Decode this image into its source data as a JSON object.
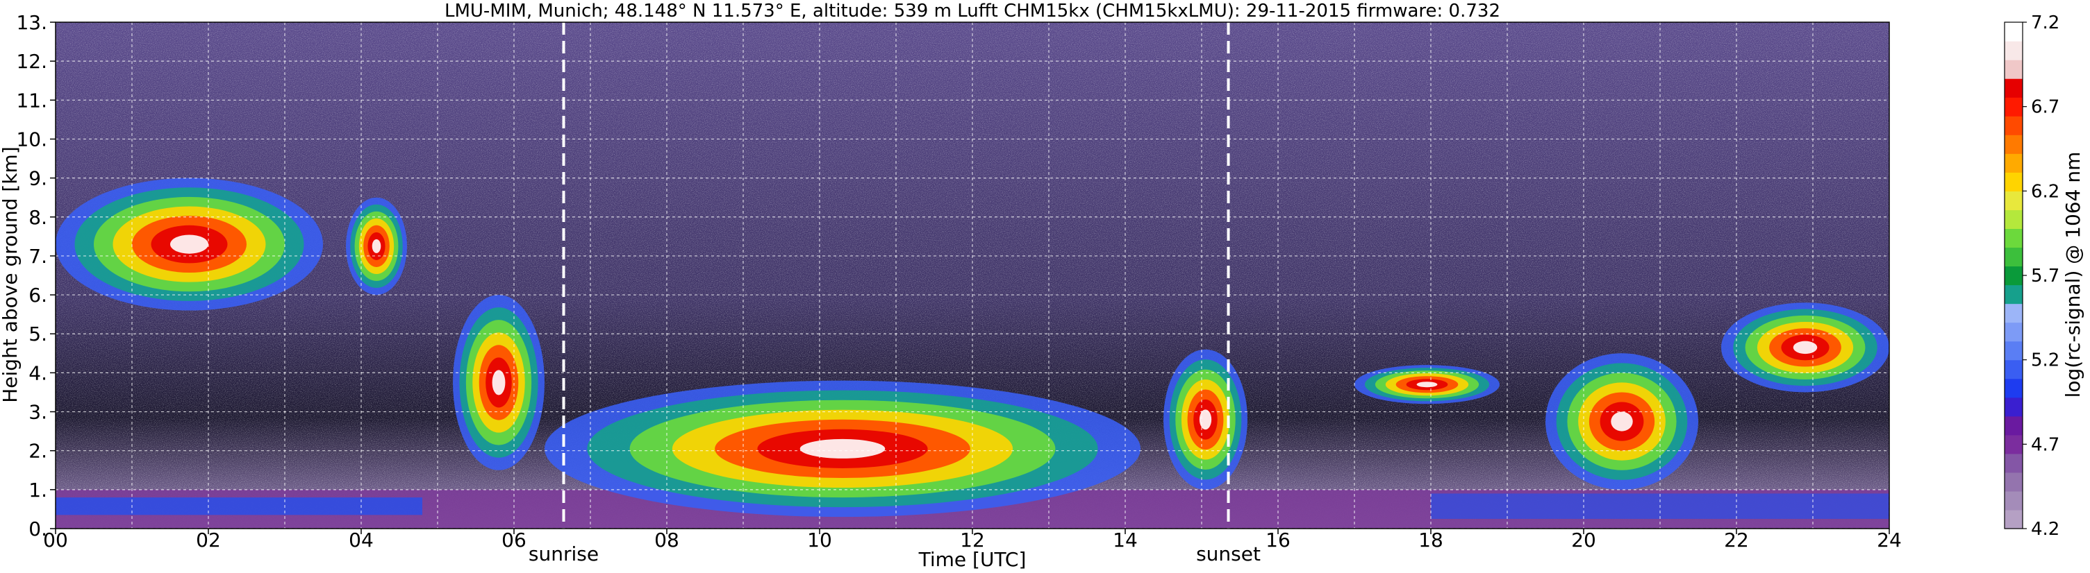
{
  "chart_data": {
    "type": "heatmap",
    "title": "LMU-MIM, Munich; 48.148° N 11.573° E, altitude: 539 m    Lufft CHM15kx (CHM15kxLMU): 29-11-2015    firmware: 0.732",
    "xlabel": "Time [UTC]",
    "ylabel": "Height above ground [km]",
    "xlim": [
      0,
      24
    ],
    "ylim": [
      0,
      13
    ],
    "x_ticks": [
      "00",
      "02",
      "04",
      "06",
      "08",
      "10",
      "12",
      "14",
      "16",
      "18",
      "20",
      "22",
      "24"
    ],
    "y_ticks": [
      "0.",
      "1.",
      "2.",
      "3.",
      "4.",
      "5.",
      "6.",
      "7.",
      "8.",
      "9.",
      "10.",
      "11.",
      "12.",
      "13."
    ],
    "grid": true,
    "colorbar": {
      "label": "log(rc-signal) @ 1064 nm",
      "range": [
        4.2,
        7.2
      ],
      "ticks": [
        "4.2",
        "4.7",
        "5.2",
        "5.7",
        "6.2",
        "6.7",
        "7.2"
      ]
    },
    "events": [
      {
        "name": "sunrise",
        "time": 6.65
      },
      {
        "name": "sunset",
        "time": 15.35
      }
    ],
    "cloud_layers": [
      {
        "t_start": 0.0,
        "t_end": 3.5,
        "h_bottom": 5.6,
        "h_top": 9.0,
        "peak": "7.2"
      },
      {
        "t_start": 3.8,
        "t_end": 4.6,
        "h_bottom": 6.0,
        "h_top": 8.5,
        "peak": "6.5"
      },
      {
        "t_start": 5.2,
        "t_end": 6.4,
        "h_bottom": 1.5,
        "h_top": 6.0,
        "peak": "7.2"
      },
      {
        "t_start": 6.4,
        "t_end": 14.2,
        "h_bottom": 0.3,
        "h_top": 3.8,
        "peak": "7.2"
      },
      {
        "t_start": 14.5,
        "t_end": 15.6,
        "h_bottom": 1.0,
        "h_top": 4.6,
        "peak": "7.2"
      },
      {
        "t_start": 17.0,
        "t_end": 18.9,
        "h_bottom": 3.2,
        "h_top": 4.2,
        "peak": "7.2"
      },
      {
        "t_start": 19.5,
        "t_end": 21.5,
        "h_bottom": 1.0,
        "h_top": 4.5,
        "peak": "7.2"
      },
      {
        "t_start": 21.8,
        "t_end": 24.0,
        "h_bottom": 3.5,
        "h_top": 5.8,
        "peak": "7.2"
      }
    ],
    "boundary_layer_top_km": 1.0
  }
}
